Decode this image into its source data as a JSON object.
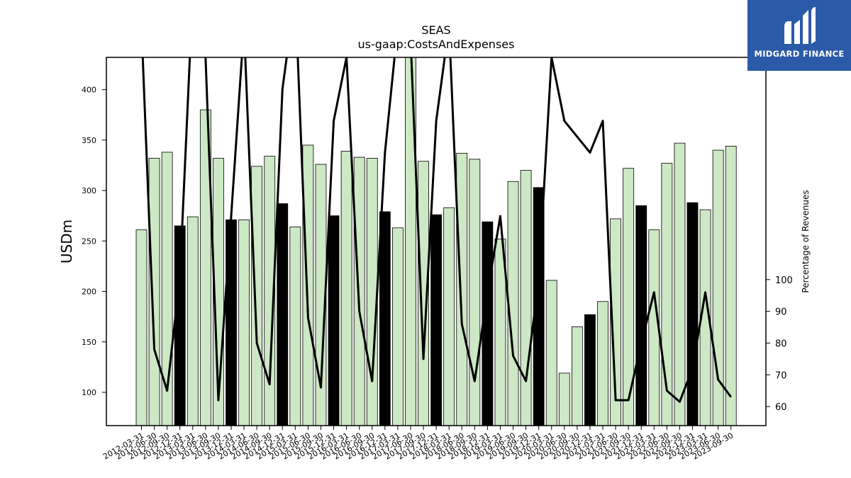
{
  "logo": {
    "text": "MIDGARD FINANCE",
    "background": "#2b5aa8"
  },
  "chart_data": {
    "type": "bar",
    "title": "SEAS",
    "subtitle": "us-gaap:CostsAndExpenses",
    "ylabel": "USDm",
    "y2label": "Percentage of Revenues",
    "ylim": [
      67,
      432
    ],
    "y2lim": [
      54,
      170
    ],
    "yticks": [
      100,
      150,
      200,
      250,
      300,
      350,
      400
    ],
    "y2ticks": [
      60,
      70,
      80,
      90,
      100
    ],
    "colors": {
      "quarter": "#cce8c4",
      "annual": "#000000",
      "line": "#000000"
    },
    "series": [
      {
        "name": "",
        "categories": [
          "2012-03-31",
          "2012-06-30",
          "2012-09-30",
          "2012-12-31",
          "2013-03-31",
          "2013-06-30",
          "2013-09-30",
          "2013-12-31",
          "2014-03-31",
          "2014-06-30",
          "2014-09-30",
          "2014-12-31",
          "2015-03-31",
          "2015-06-30",
          "2015-09-30",
          "2015-12-31",
          "2016-03-31",
          "2016-06-30",
          "2016-09-30",
          "2016-12-31",
          "2017-03-31",
          "2017-06-30",
          "2017-09-30",
          "2017-12-31",
          "2018-03-31",
          "2018-06-30",
          "2018-09-30",
          "2018-12-31",
          "2019-03-31",
          "2019-06-30",
          "2019-09-30",
          "2019-12-31",
          "2020-03-31",
          "2020-06-30",
          "2020-09-30",
          "2020-12-31",
          "2021-03-31",
          "2021-06-30",
          "2021-09-30",
          "2021-12-31",
          "2022-03-31",
          "2022-06-30",
          "2022-09-30",
          "2022-12-31",
          "2023-03-31",
          "2023-06-30",
          "2023-09-30"
        ],
        "values": [
          261,
          332,
          338,
          265,
          274,
          380,
          332,
          271,
          271,
          324,
          334,
          287,
          264,
          345,
          326,
          275,
          339,
          333,
          332,
          279,
          263,
          435,
          329,
          276,
          283,
          337,
          331,
          269,
          252,
          309,
          320,
          303,
          211,
          119,
          165,
          177,
          190,
          272,
          322,
          285,
          261,
          327,
          347,
          288,
          281,
          340,
          344
        ],
        "annual": [
          false,
          false,
          false,
          true,
          false,
          false,
          false,
          true,
          false,
          false,
          false,
          true,
          false,
          false,
          false,
          true,
          false,
          false,
          false,
          true,
          false,
          false,
          false,
          true,
          false,
          false,
          false,
          true,
          false,
          false,
          false,
          true,
          false,
          false,
          false,
          true,
          false,
          false,
          false,
          true,
          false,
          false,
          false,
          true,
          false,
          false,
          false
        ]
      },
      {
        "name": "",
        "type": "line",
        "axis": "right",
        "values": [
          180,
          78,
          65,
          101,
          190,
          170,
          62,
          120,
          180,
          80,
          67,
          160,
          190,
          88,
          66,
          150,
          170,
          90,
          68,
          140,
          180,
          176,
          75,
          150,
          180,
          86,
          68,
          96,
          120,
          76,
          68,
          100,
          170,
          150,
          145,
          140,
          150,
          62,
          62,
          80,
          96,
          65,
          61.5,
          72,
          96,
          68.5,
          63
        ]
      }
    ],
    "tick_labels": [
      "2012-03-31",
      "2012-06-30",
      "2012-09-30",
      "2012-12-31",
      "2013-03-31",
      "2013-06-30",
      "2013-09-30",
      "2013-12-31",
      "2014-03-31",
      "2014-06-30",
      "2014-09-30",
      "2014-12-31",
      "2015-03-31",
      "2015-06-30",
      "2015-09-30",
      "2015-12-31",
      "2016-03-31",
      "2016-06-30",
      "2016-09-30",
      "2016-12-31",
      "2017-03-31",
      "2017-06-30",
      "2017-09-30",
      "2017-12-31",
      "2018-03-31",
      "2018-06-30",
      "2018-09-30",
      "2018-12-31",
      "2019-03-31",
      "2019-06-30",
      "2019-09-30",
      "2019-12-31",
      "2020-03-31",
      "2020-06-30",
      "2020-09-30",
      "2020-12-31",
      "2021-03-31",
      "2021-06-30",
      "2021-09-30",
      "2021-12-31",
      "2022-03-31",
      "2022-06-30",
      "2022-09-30",
      "2022-12-31",
      "2023-03-31",
      "2023-06-30",
      "2023-09-30"
    ]
  }
}
